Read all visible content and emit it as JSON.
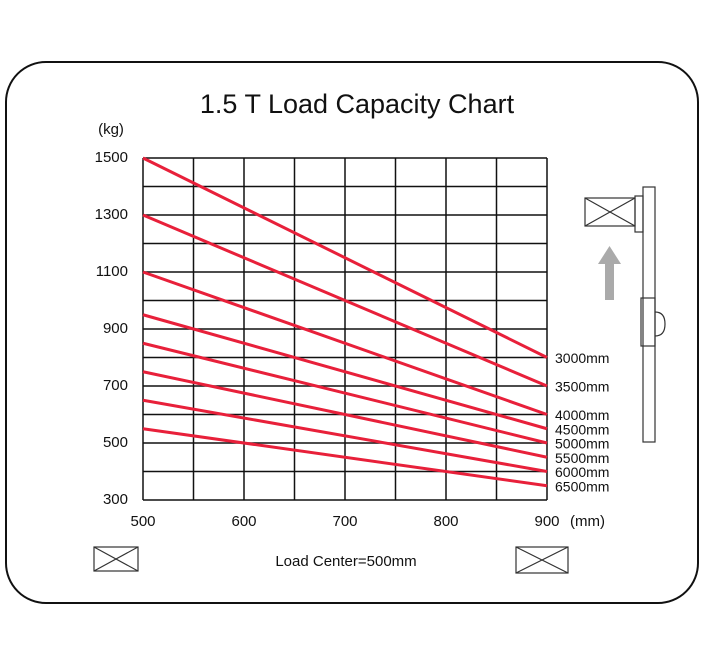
{
  "chart_data": {
    "type": "line",
    "title": "1.5 T Load Capacity Chart",
    "y_label": "(kg)",
    "x_label": "(mm)",
    "annotation": "Load Center=500mm",
    "x": [
      500,
      900
    ],
    "series": [
      {
        "name": "3000mm",
        "color": "#e8203a",
        "values": [
          1500,
          800
        ]
      },
      {
        "name": "3500mm",
        "color": "#e8203a",
        "values": [
          1300,
          700
        ]
      },
      {
        "name": "4000mm",
        "color": "#e8203a",
        "values": [
          1100,
          600
        ]
      },
      {
        "name": "4500mm",
        "color": "#e8203a",
        "values": [
          950,
          550
        ]
      },
      {
        "name": "5000mm",
        "color": "#e8203a",
        "values": [
          850,
          500
        ]
      },
      {
        "name": "5500mm",
        "color": "#e8203a",
        "values": [
          750,
          450
        ]
      },
      {
        "name": "6000mm",
        "color": "#e8203a",
        "values": [
          650,
          400
        ]
      },
      {
        "name": "6500mm",
        "color": "#e8203a",
        "values": [
          550,
          350
        ]
      }
    ],
    "xlim": [
      500,
      900
    ],
    "ylim": [
      300,
      1500
    ],
    "xticks": [
      500,
      600,
      700,
      800,
      900
    ],
    "yticks": [
      300,
      500,
      700,
      900,
      1100,
      1300,
      1500
    ],
    "x_gridlines": [
      500,
      550,
      600,
      650,
      700,
      750,
      800,
      850,
      900
    ],
    "y_gridlines": [
      300,
      400,
      500,
      600,
      700,
      800,
      900,
      1000,
      1100,
      1200,
      1300,
      1400,
      1500
    ],
    "grid": true
  }
}
